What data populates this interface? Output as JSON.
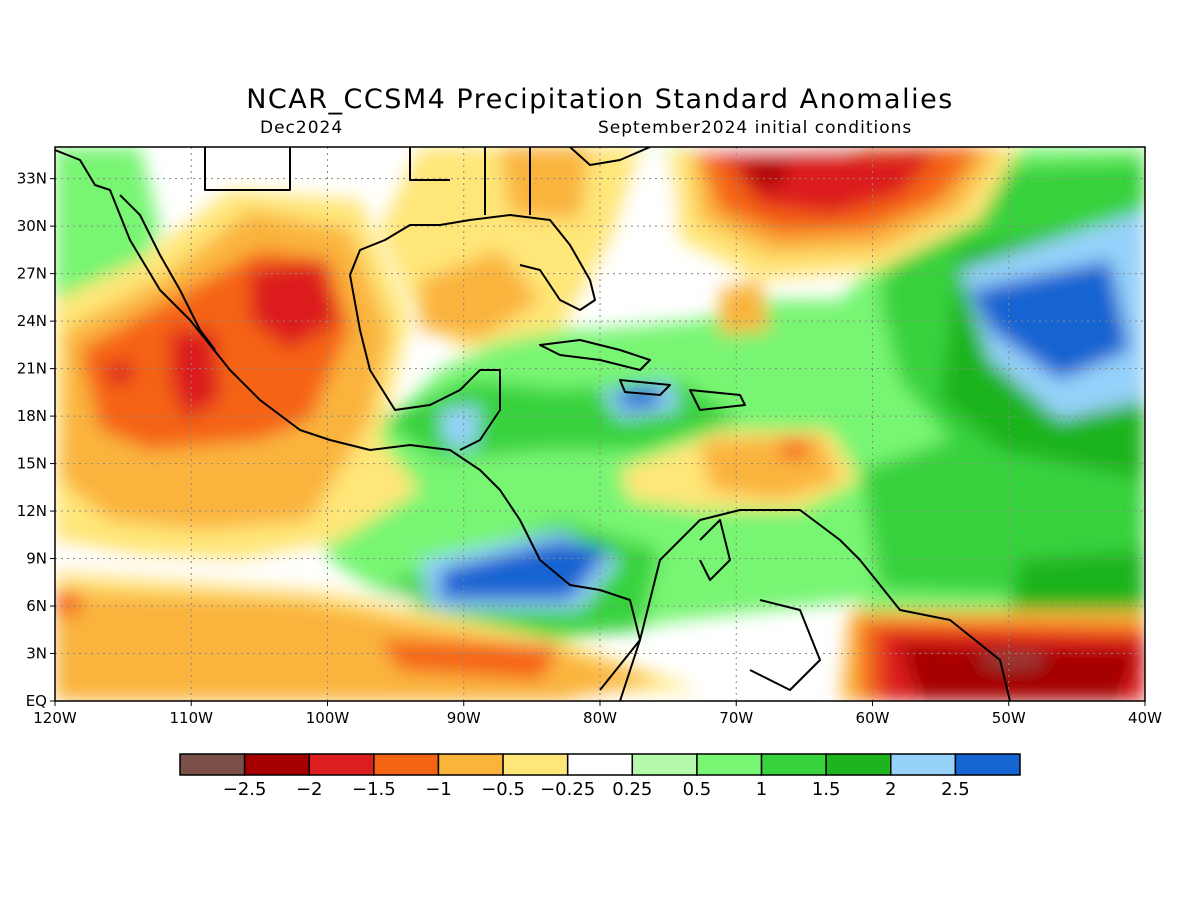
{
  "title": "NCAR_CCSM4 Precipitation Standard Anomalies",
  "subtitle_left": "Dec2024",
  "subtitle_right": "September2024 initial conditions",
  "map": {
    "lon_range": [
      -120,
      -40
    ],
    "lat_range": [
      0,
      35
    ],
    "gridlines": "dotted",
    "lon_ticks": [
      "120W",
      "110W",
      "100W",
      "90W",
      "80W",
      "70W",
      "60W",
      "50W",
      "40W"
    ],
    "lat_ticks": [
      "EQ",
      "3N",
      "6N",
      "9N",
      "12N",
      "15N",
      "18N",
      "21N",
      "24N",
      "27N",
      "30N",
      "33N"
    ]
  },
  "colorbar": {
    "colors": [
      "#7a5048",
      "#a50000",
      "#dc1e1e",
      "#f56414",
      "#fab43c",
      "#ffe678",
      "#ffffff",
      "#b4faaa",
      "#78f573",
      "#37d23c",
      "#1eb41e",
      "#96d2fa",
      "#1464d2"
    ],
    "labels": [
      "-2.5",
      "-2",
      "-1.5",
      "-1",
      "-0.5",
      "-0.25",
      "0.25",
      "0.5",
      "1",
      "1.5",
      "2",
      "2.5"
    ]
  },
  "chart_data": {
    "type": "heatmap",
    "variable": "Precipitation Standard Anomalies",
    "xlim": [
      -120,
      -40
    ],
    "ylim": [
      0,
      35
    ],
    "levels": [
      -2.5,
      -2,
      -1.5,
      -1,
      -0.5,
      -0.25,
      0.25,
      0.5,
      1,
      1.5,
      2,
      2.5
    ]
  }
}
